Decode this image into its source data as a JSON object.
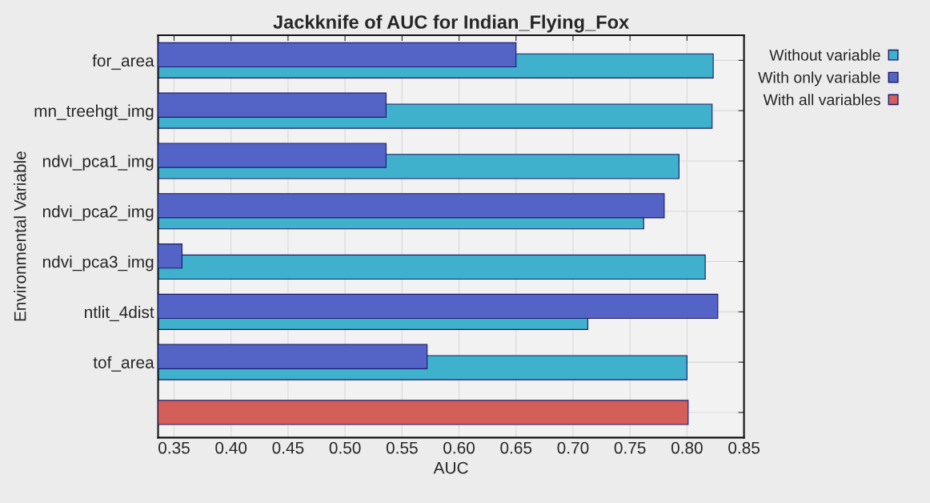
{
  "chart_data": {
    "type": "bar",
    "orientation": "horizontal",
    "title": "Jackknife of AUC for Indian_Flying_Fox",
    "xlabel": "AUC",
    "ylabel": "Environmental Variable",
    "categories": [
      "for_area",
      "mn_treehgt_img",
      "ndvi_pca1_img",
      "ndvi_pca2_img",
      "ndvi_pca3_img",
      "ntlit_4dist",
      "tof_area",
      null
    ],
    "series": [
      {
        "name": "Without variable",
        "color": "#3fb1cc",
        "values": [
          0.823,
          0.822,
          0.793,
          0.762,
          0.816,
          0.713,
          0.8,
          null
        ]
      },
      {
        "name": "With only variable",
        "color": "#5464c6",
        "values": [
          0.65,
          0.536,
          0.536,
          0.78,
          0.357,
          0.827,
          0.572,
          null
        ]
      },
      {
        "name": "With all variables",
        "color": "#d45f58",
        "values": [
          null,
          null,
          null,
          null,
          null,
          null,
          null,
          0.801
        ]
      }
    ],
    "xlim": [
      0.336,
      0.85
    ],
    "xticks": [
      0.35,
      {
        "value": 0.4,
        "label": "0.40"
      },
      0.45,
      {
        "value": 0.5,
        "label": "0.50"
      },
      0.55,
      {
        "value": 0.6,
        "label": "0.60"
      },
      0.65,
      {
        "value": 0.7,
        "label": "0.70"
      },
      0.75,
      {
        "value": 0.8,
        "label": "0.80"
      },
      0.85
    ],
    "grid": true,
    "legend": "top right"
  }
}
